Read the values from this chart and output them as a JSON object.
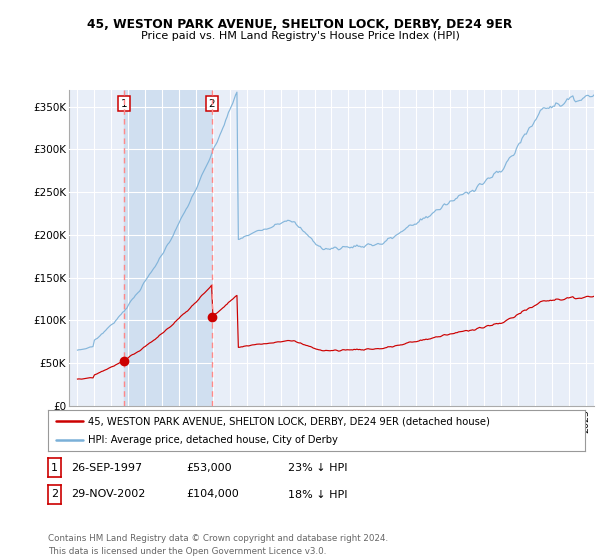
{
  "title1": "45, WESTON PARK AVENUE, SHELTON LOCK, DERBY, DE24 9ER",
  "title2": "Price paid vs. HM Land Registry's House Price Index (HPI)",
  "background_color": "#ffffff",
  "plot_bg_color": "#e8eef8",
  "grid_color": "#ffffff",
  "sale1_date": 1997.74,
  "sale1_price": 53000,
  "sale2_date": 2002.92,
  "sale2_price": 104000,
  "hpi_line_color": "#7ab0d8",
  "price_line_color": "#cc0000",
  "dashed_line_color": "#ff8888",
  "shade_color": "#d0dff0",
  "legend_line1": "45, WESTON PARK AVENUE, SHELTON LOCK, DERBY, DE24 9ER (detached house)",
  "legend_line2": "HPI: Average price, detached house, City of Derby",
  "table_row1": [
    "1",
    "26-SEP-1997",
    "£53,000",
    "23% ↓ HPI"
  ],
  "table_row2": [
    "2",
    "29-NOV-2002",
    "£104,000",
    "18% ↓ HPI"
  ],
  "footer": "Contains HM Land Registry data © Crown copyright and database right 2024.\nThis data is licensed under the Open Government Licence v3.0.",
  "ylim_min": 0,
  "ylim_max": 370000,
  "xlim_min": 1994.5,
  "xlim_max": 2025.5
}
